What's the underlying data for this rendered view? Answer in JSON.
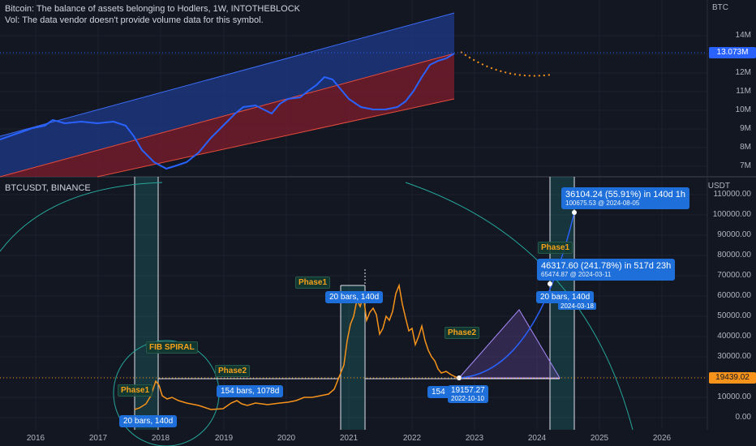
{
  "top_pane": {
    "legend_line1": "Bitcoin: The balance of assets belonging to Hodlers, 1W, INTOTHEBLOCK",
    "legend_line2": "Vol: The data vendor doesn't provide volume data for this symbol.",
    "currency": "BTC",
    "y_labels": [
      "14M",
      "13M",
      "12M",
      "11M",
      "10M",
      "9M",
      "8M",
      "7M"
    ],
    "current_value": "13.073M"
  },
  "bottom_pane": {
    "legend": "BTCUSDT, BINANCE",
    "currency": "USDT",
    "y_labels": [
      "110000.00",
      "100000.00",
      "90000.00",
      "80000.00",
      "70000.00",
      "60000.00",
      "50000.00",
      "40000.00",
      "30000.00",
      "20000.00",
      "10000.00",
      "0.00"
    ],
    "current_price": "19439.02"
  },
  "x_axis": [
    "2016",
    "2017",
    "2018",
    "2019",
    "2020",
    "2021",
    "2022",
    "2023",
    "2024",
    "2025",
    "2026"
  ],
  "annotations": {
    "fib_spiral": "FIB SPIRAL",
    "phase1_a": "Phase1",
    "phase2_a": "Phase2",
    "phase1_b": "Phase1",
    "phase2_b": "Phase2",
    "phase1_c": "Phase1",
    "bars_20_a": "20 bars, 140d",
    "bars_154_a": "154 bars, 1078d",
    "bars_20_b": "20 bars, 140d",
    "bars_154_b": "154 b",
    "bars_20_c": "20 bars, 140d",
    "low_price": "19157.27",
    "low_date": "2022-10-10",
    "date_small": "2024-03-18",
    "measure1_line1": "36104.24 (55.91%) in 140d 1h",
    "measure1_line2": "100675.53 @ 2024-08-05",
    "measure2_line1": "46317.60 (241.78%) in 517d 23h",
    "measure2_line2": "65474.87 @ 2024-03-11"
  },
  "colors": {
    "background": "#131722",
    "holder_line": "#2962ff",
    "btc_line": "#f7931a",
    "channel_upper": "#1e3a8a",
    "channel_lower": "#7f1d2d",
    "teal": "#26a69a",
    "label_blue": "#1e6fd9"
  }
}
